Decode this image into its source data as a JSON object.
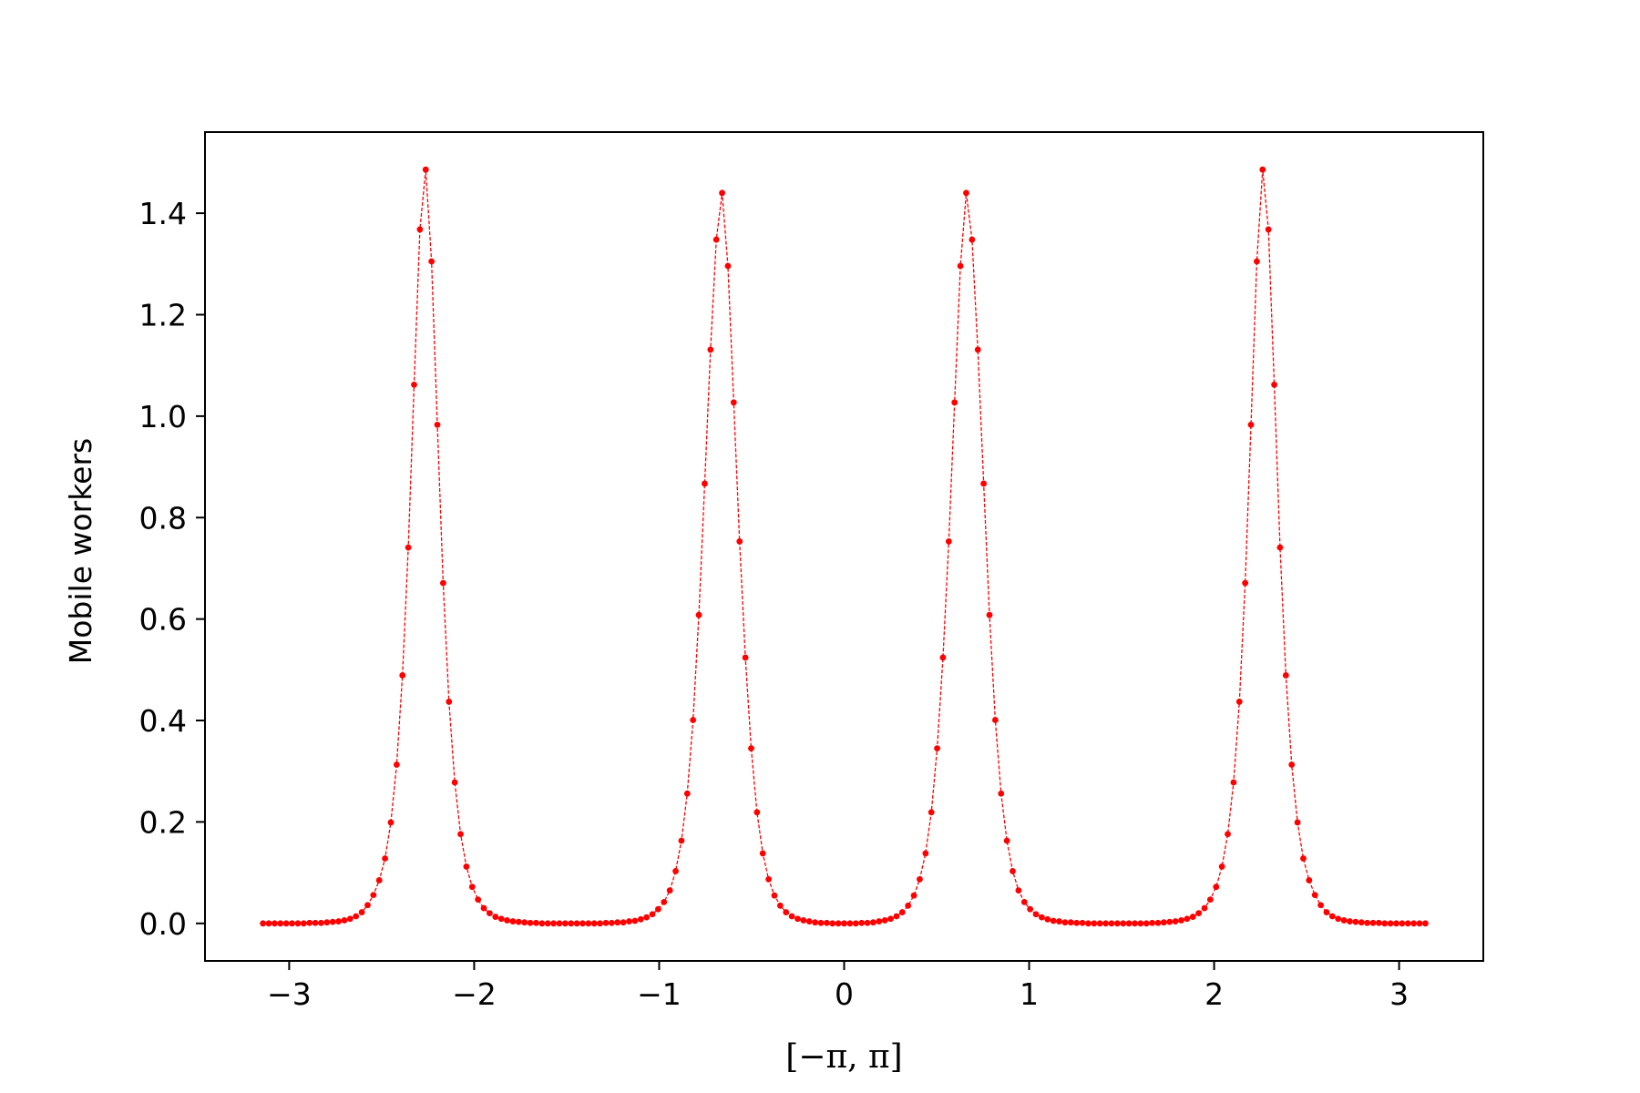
{
  "chart_data": {
    "type": "line",
    "title": "",
    "xlabel": "[−π, π]",
    "ylabel": "Mobile workers",
    "xlim": [
      -3.455,
      3.455
    ],
    "ylim": [
      -0.074,
      1.56
    ],
    "xticks": [
      -3,
      -2,
      -1,
      0,
      1,
      2,
      3
    ],
    "xtick_labels": [
      "−3",
      "−2",
      "−1",
      "0",
      "1",
      "2",
      "3"
    ],
    "yticks": [
      0.0,
      0.2,
      0.4,
      0.6,
      0.8,
      1.0,
      1.2,
      1.4
    ],
    "ytick_labels": [
      "0.0",
      "0.2",
      "0.4",
      "0.6",
      "0.8",
      "1.0",
      "1.2",
      "1.4"
    ],
    "grid": false,
    "legend": "none",
    "series": [
      {
        "color": "#ff0000",
        "line_style": "dashed",
        "marker": "dot",
        "x": [
          -3.1416,
          -3.1101,
          -3.0787,
          -3.0473,
          -3.0159,
          -2.9845,
          -2.953,
          -2.9216,
          -2.8902,
          -2.8588,
          -2.8274,
          -2.7959,
          -2.7645,
          -2.7331,
          -2.7017,
          -2.6703,
          -2.6389,
          -2.6074,
          -2.576,
          -2.5446,
          -2.5132,
          -2.4818,
          -2.4504,
          -2.4189,
          -2.3875,
          -2.3561,
          -2.3247,
          -2.2933,
          -2.2619,
          -2.2304,
          -2.199,
          -2.1676,
          -2.1362,
          -2.1048,
          -2.0734,
          -2.0419,
          -2.0105,
          -1.9791,
          -1.9477,
          -1.9163,
          -1.8849,
          -1.8534,
          -1.822,
          -1.7906,
          -1.7592,
          -1.7278,
          -1.6964,
          -1.6649,
          -1.6335,
          -1.6021,
          -1.5707,
          -1.5393,
          -1.5079,
          -1.4764,
          -1.445,
          -1.4136,
          -1.3822,
          -1.3508,
          -1.3194,
          -1.2879,
          -1.2565,
          -1.2251,
          -1.1937,
          -1.1623,
          -1.1309,
          -1.0994,
          -1.068,
          -1.0366,
          -1.0052,
          -0.9738,
          -0.9423,
          -0.9109,
          -0.8795,
          -0.8481,
          -0.8167,
          -0.7853,
          -0.7538,
          -0.7224,
          -0.691,
          -0.6596,
          -0.6282,
          -0.5968,
          -0.5653,
          -0.5339,
          -0.5025,
          -0.4711,
          -0.4397,
          -0.4083,
          -0.3768,
          -0.3454,
          -0.314,
          -0.2826,
          -0.2512,
          -0.2198,
          -0.1883,
          -0.1569,
          -0.1255,
          -0.0941,
          -0.0627,
          -0.0313,
          0.0002,
          0.0316,
          0.063,
          0.0944,
          0.1258,
          0.1572,
          0.1887,
          0.2201,
          0.2515,
          0.2829,
          0.3143,
          0.3457,
          0.3772,
          0.4086,
          0.44,
          0.4714,
          0.5028,
          0.5342,
          0.5657,
          0.5971,
          0.6285,
          0.6599,
          0.6913,
          0.7227,
          0.7542,
          0.7856,
          0.817,
          0.8484,
          0.8798,
          0.9112,
          0.9427,
          0.9741,
          1.0055,
          1.0369,
          1.0683,
          1.0998,
          1.1312,
          1.1626,
          1.194,
          1.2254,
          1.2568,
          1.2883,
          1.3197,
          1.3511,
          1.3825,
          1.4139,
          1.4453,
          1.4768,
          1.5082,
          1.5396,
          1.571,
          1.6024,
          1.6338,
          1.6653,
          1.6967,
          1.7281,
          1.7595,
          1.7909,
          1.8223,
          1.8538,
          1.8852,
          1.9166,
          1.948,
          1.9794,
          2.0108,
          2.0423,
          2.0737,
          2.1051,
          2.1365,
          2.1679,
          2.1993,
          2.2308,
          2.2622,
          2.2936,
          2.325,
          2.3564,
          2.3879,
          2.4193,
          2.4507,
          2.4821,
          2.5135,
          2.5449,
          2.5764,
          2.6078,
          2.6392,
          2.6706,
          2.702,
          2.7334,
          2.7649,
          2.7963,
          2.8277,
          2.8591,
          2.8905,
          2.9219,
          2.9534,
          2.9848,
          3.0162,
          3.0476,
          3.079,
          3.1104,
          3.1419
        ],
        "y": [
          0.0,
          0.0,
          0.0,
          0.0,
          0.0,
          0.0,
          0.0,
          0.0,
          0.001,
          0.001,
          0.001,
          0.002,
          0.003,
          0.004,
          0.006,
          0.009,
          0.014,
          0.022,
          0.036,
          0.056,
          0.085,
          0.128,
          0.199,
          0.313,
          0.489,
          0.741,
          1.062,
          1.368,
          1.486,
          1.305,
          0.983,
          0.671,
          0.437,
          0.278,
          0.176,
          0.112,
          0.072,
          0.047,
          0.03,
          0.02,
          0.013,
          0.009,
          0.006,
          0.004,
          0.003,
          0.002,
          0.001,
          0.001,
          0.0,
          0.0,
          0.0,
          0.0,
          0.0,
          0.0,
          0.0,
          0.0,
          0.0,
          0.0,
          0.0,
          0.001,
          0.001,
          0.002,
          0.002,
          0.004,
          0.005,
          0.008,
          0.012,
          0.018,
          0.028,
          0.042,
          0.065,
          0.103,
          0.163,
          0.256,
          0.401,
          0.608,
          0.867,
          1.131,
          1.348,
          1.44,
          1.296,
          1.027,
          0.753,
          0.524,
          0.345,
          0.219,
          0.138,
          0.087,
          0.055,
          0.035,
          0.022,
          0.014,
          0.009,
          0.006,
          0.004,
          0.002,
          0.001,
          0.001,
          0.0,
          0.0,
          0.0,
          0.0,
          0.0,
          0.001,
          0.001,
          0.002,
          0.004,
          0.006,
          0.009,
          0.014,
          0.022,
          0.035,
          0.055,
          0.087,
          0.138,
          0.219,
          0.345,
          0.524,
          0.753,
          1.027,
          1.296,
          1.44,
          1.348,
          1.131,
          0.867,
          0.608,
          0.401,
          0.256,
          0.163,
          0.103,
          0.065,
          0.042,
          0.028,
          0.018,
          0.012,
          0.008,
          0.005,
          0.004,
          0.002,
          0.002,
          0.001,
          0.001,
          0.0,
          0.0,
          0.0,
          0.0,
          0.0,
          0.0,
          0.0,
          0.0,
          0.0,
          0.0,
          0.0,
          0.001,
          0.001,
          0.002,
          0.003,
          0.004,
          0.006,
          0.009,
          0.013,
          0.02,
          0.03,
          0.047,
          0.072,
          0.112,
          0.176,
          0.278,
          0.437,
          0.671,
          0.983,
          1.305,
          1.486,
          1.368,
          1.062,
          0.741,
          0.489,
          0.313,
          0.199,
          0.128,
          0.085,
          0.056,
          0.036,
          0.022,
          0.014,
          0.009,
          0.006,
          0.004,
          0.003,
          0.002,
          0.001,
          0.001,
          0.001,
          0.0,
          0.0,
          0.0,
          0.0,
          0.0,
          0.0,
          0.0,
          0.0
        ]
      }
    ]
  }
}
